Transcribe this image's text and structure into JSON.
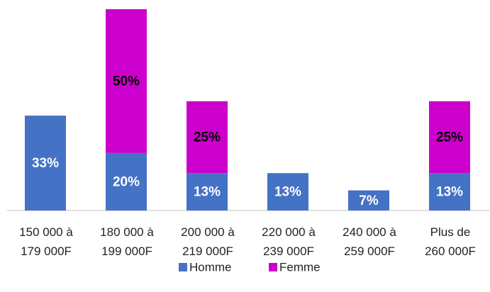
{
  "chart_data": {
    "type": "stacked_bar",
    "categories": [
      "150 000 à\n179 000F",
      "180 000 à\n199 000F",
      "200 000 à\n219 000F",
      "220 000 à\n239 000F",
      "240 000 à\n259 000F",
      "Plus de\n260 000F"
    ],
    "series": [
      {
        "name": "Homme",
        "color": "#4472c4",
        "values": [
          33,
          20,
          13,
          13,
          7,
          13
        ],
        "value_labels": [
          "33%",
          "20%",
          "13%",
          "13%",
          "7%",
          "13%"
        ]
      },
      {
        "name": "Femme",
        "color": "#cc00cc",
        "values": [
          null,
          50,
          25,
          null,
          null,
          25
        ],
        "value_labels": [
          null,
          "50%",
          "25%",
          null,
          null,
          "25%"
        ]
      }
    ],
    "ylim": [
      0,
      70
    ],
    "legend": "bottom"
  }
}
